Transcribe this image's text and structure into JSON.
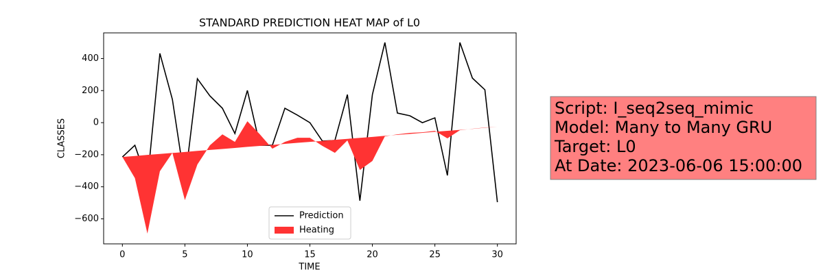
{
  "chart_data": {
    "type": "line",
    "title": "STANDARD PREDICTION HEAT MAP of L0",
    "xlabel": "TIME",
    "ylabel": "CLASSES",
    "x": [
      0,
      1,
      2,
      3,
      4,
      5,
      6,
      7,
      8,
      9,
      10,
      11,
      12,
      13,
      14,
      15,
      16,
      17,
      18,
      19,
      20,
      21,
      22,
      23,
      24,
      25,
      26,
      27,
      28,
      29,
      30
    ],
    "series": [
      {
        "name": "Prediction",
        "type": "line",
        "color": "#000000",
        "values": [
          -214,
          -141,
          -368,
          432,
          145,
          -368,
          274,
          167,
          90,
          -68,
          201,
          -141,
          -141,
          90,
          47,
          0,
          -115,
          -111,
          175,
          -487,
          175,
          500,
          60,
          43,
          0,
          30,
          -329,
          500,
          278,
          205,
          -496
        ]
      },
      {
        "name": "Heating",
        "type": "fill_between",
        "color": "#ff3333",
        "values": [
          -214,
          -346,
          -692,
          -303,
          -188,
          -483,
          -261,
          -141,
          -73,
          -120,
          9,
          -73,
          -162,
          -120,
          -94,
          -94,
          -145,
          -188,
          -111,
          -295,
          -239,
          -85,
          -73,
          -64,
          -60,
          -51,
          -98,
          -47,
          -38,
          -30,
          -26
        ],
        "baseline": [
          -214,
          -208,
          -201,
          -195,
          -189,
          -183,
          -176,
          -170,
          -164,
          -158,
          -151,
          -145,
          -139,
          -132,
          -126,
          -120,
          -114,
          -107,
          -101,
          -95,
          -89,
          -82,
          -76,
          -70,
          -64,
          -57,
          -51,
          -45,
          -39,
          -32,
          -26
        ]
      }
    ],
    "xlim": [
      -1.5,
      31.5
    ],
    "xticks": [
      0,
      5,
      10,
      15,
      20,
      25,
      30
    ],
    "ylim": [
      -756,
      560
    ],
    "yticks": [
      {
        "value": -600,
        "label": "−600"
      },
      {
        "value": -400,
        "label": "−400"
      },
      {
        "value": -200,
        "label": "−200"
      },
      0,
      200,
      400
    ],
    "grid": false,
    "legend": "lower center",
    "annotation": [
      "Script: I_seq2seq_mimic",
      "Model: Many to Many GRU",
      "Target: L0",
      "At Date: 2023-06-06 15:00:00"
    ]
  }
}
